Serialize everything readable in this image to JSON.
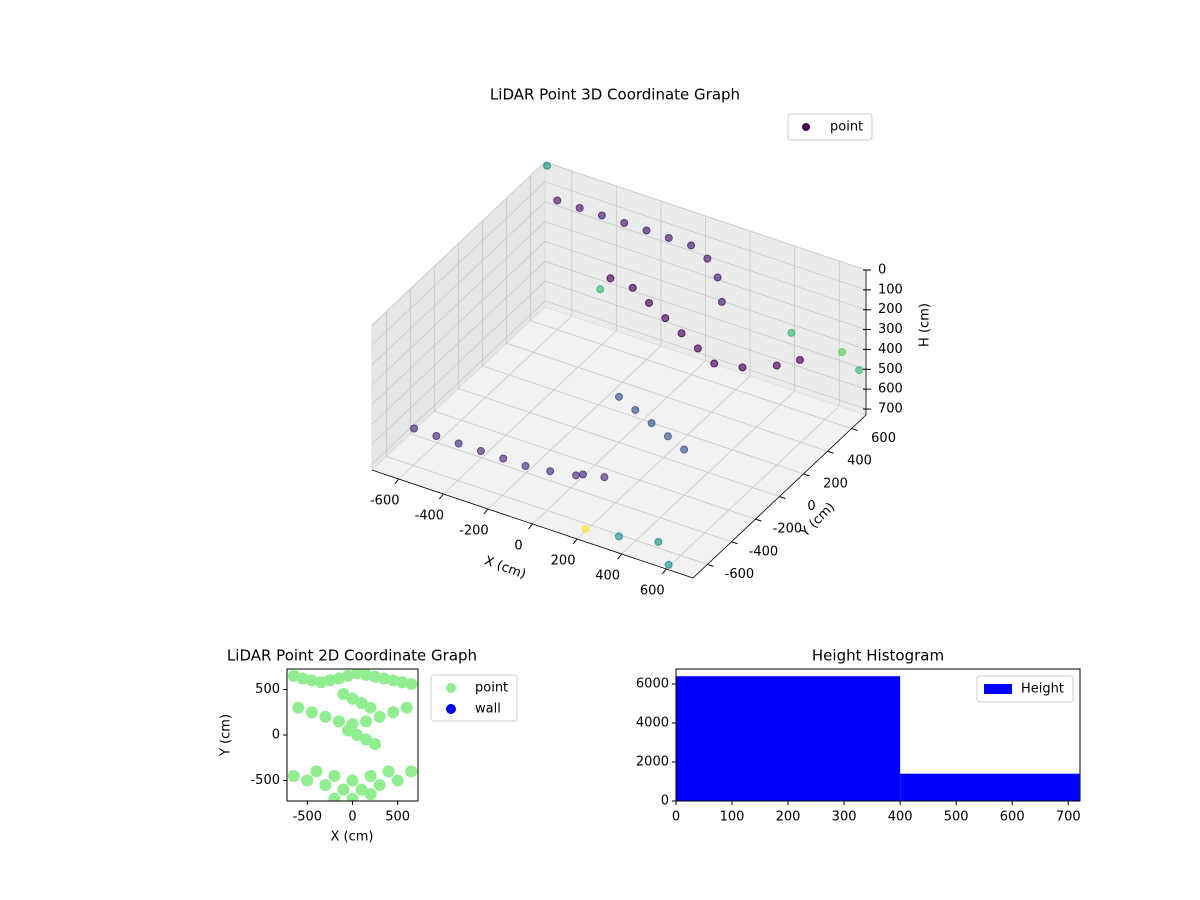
{
  "chart_data": [
    {
      "type": "scatter3d",
      "title": "LiDAR Point 3D Coordinate Graph",
      "xlabel": "X (cm)",
      "ylabel": "Y (cm)",
      "zlabel": "H (cm)",
      "xlim": [
        -720,
        720
      ],
      "ylim": [
        -720,
        720
      ],
      "zlim": [
        730,
        0
      ],
      "xticks": [
        -600,
        -400,
        -200,
        0,
        200,
        400,
        600
      ],
      "yticks": [
        -600,
        -400,
        -200,
        0,
        200,
        400,
        600
      ],
      "zticks": [
        0,
        100,
        200,
        300,
        400,
        500,
        600,
        700
      ],
      "grid": true,
      "legend": "upper right",
      "series": [
        {
          "name": "point",
          "color": "#440154",
          "x": [
            -650,
            -550,
            -450,
            -350,
            -250,
            -150,
            -50,
            50,
            150,
            -600,
            -500,
            -400,
            -300,
            -200,
            -100,
            0,
            100,
            200,
            300,
            -200,
            -100,
            0,
            100,
            200,
            300,
            400,
            500,
            600,
            650,
            0,
            100,
            200,
            300,
            400,
            -300,
            350,
            500,
            650,
            700,
            600,
            -700,
            0,
            200,
            450
          ],
          "y": [
            -500,
            -500,
            -500,
            -500,
            -500,
            -500,
            -480,
            -450,
            -400,
            600,
            600,
            600,
            600,
            600,
            600,
            600,
            550,
            450,
            300,
            300,
            300,
            250,
            200,
            150,
            100,
            50,
            100,
            200,
            300,
            0,
            -50,
            -100,
            -150,
            -200,
            400,
            -650,
            -600,
            650,
            700,
            -700,
            700,
            -300,
            -650,
            600
          ],
          "z": [
            620,
            620,
            620,
            620,
            620,
            620,
            620,
            620,
            620,
            80,
            80,
            80,
            80,
            80,
            80,
            80,
            80,
            80,
            80,
            150,
            160,
            170,
            180,
            190,
            200,
            210,
            220,
            230,
            240,
            500,
            500,
            500,
            500,
            500,
            300,
            700,
            700,
            400,
            500,
            720,
            0,
            720,
            720,
            350
          ],
          "colors": [
            "#472d7b",
            "#472d7b",
            "#472d7b",
            "#472d7b",
            "#472d7b",
            "#472d7b",
            "#472d7b",
            "#472d7b",
            "#472d7b",
            "#481a6c",
            "#481a6c",
            "#481a6c",
            "#481a6c",
            "#481a6c",
            "#481a6c",
            "#481a6c",
            "#481a6c",
            "#481a6c",
            "#481a6c",
            "#440154",
            "#440154",
            "#440154",
            "#440154",
            "#440154",
            "#440154",
            "#440154",
            "#440154",
            "#440154",
            "#440154",
            "#3b528b",
            "#3b528b",
            "#3b528b",
            "#3b528b",
            "#3b528b",
            "#35b779",
            "#21918c",
            "#21918c",
            "#5ec962",
            "#35b779",
            "#21918c",
            "#21918c",
            "#472d7b",
            "#fde725",
            "#35b779"
          ]
        }
      ]
    },
    {
      "type": "scatter",
      "title": "LiDAR Point 2D Coordinate Graph",
      "xlabel": "X (cm)",
      "ylabel": "Y (cm)",
      "xlim": [
        -725,
        725
      ],
      "ylim": [
        -725,
        725
      ],
      "xticks": [
        -500,
        0,
        500
      ],
      "yticks": [
        -500,
        0,
        500
      ],
      "legend": "outside right",
      "series": [
        {
          "name": "point",
          "color": "#90ee90",
          "x": [
            -650,
            -550,
            -450,
            -350,
            -250,
            -150,
            -50,
            50,
            150,
            250,
            350,
            450,
            550,
            650,
            -600,
            -450,
            -300,
            -150,
            0,
            150,
            300,
            450,
            600,
            -100,
            0,
            100,
            200,
            -50,
            50,
            150,
            250,
            -400,
            -200,
            0,
            200,
            400,
            -650,
            -500,
            -300,
            -100,
            100,
            300,
            500,
            650,
            -200,
            0,
            200
          ],
          "y": [
            650,
            620,
            600,
            580,
            600,
            620,
            650,
            680,
            660,
            640,
            620,
            600,
            580,
            560,
            300,
            250,
            200,
            150,
            120,
            150,
            200,
            250,
            300,
            450,
            400,
            350,
            300,
            50,
            0,
            -50,
            -100,
            -400,
            -450,
            -500,
            -450,
            -400,
            -450,
            -500,
            -550,
            -600,
            -600,
            -550,
            -500,
            -400,
            -700,
            -700,
            -650
          ]
        },
        {
          "name": "wall",
          "color": "#0000ff",
          "x": [],
          "y": []
        }
      ]
    },
    {
      "type": "histogram",
      "title": "Height Histogram",
      "name": "Height",
      "color": "#0000ff",
      "bins": [
        0,
        400,
        720
      ],
      "values": [
        6400,
        1400
      ],
      "xlim": [
        0,
        721
      ],
      "ylim": [
        0,
        6770
      ],
      "xticks": [
        0,
        100,
        200,
        300,
        400,
        500,
        600,
        700
      ],
      "yticks": [
        0,
        2000,
        4000,
        6000
      ],
      "legend": "upper right"
    }
  ]
}
